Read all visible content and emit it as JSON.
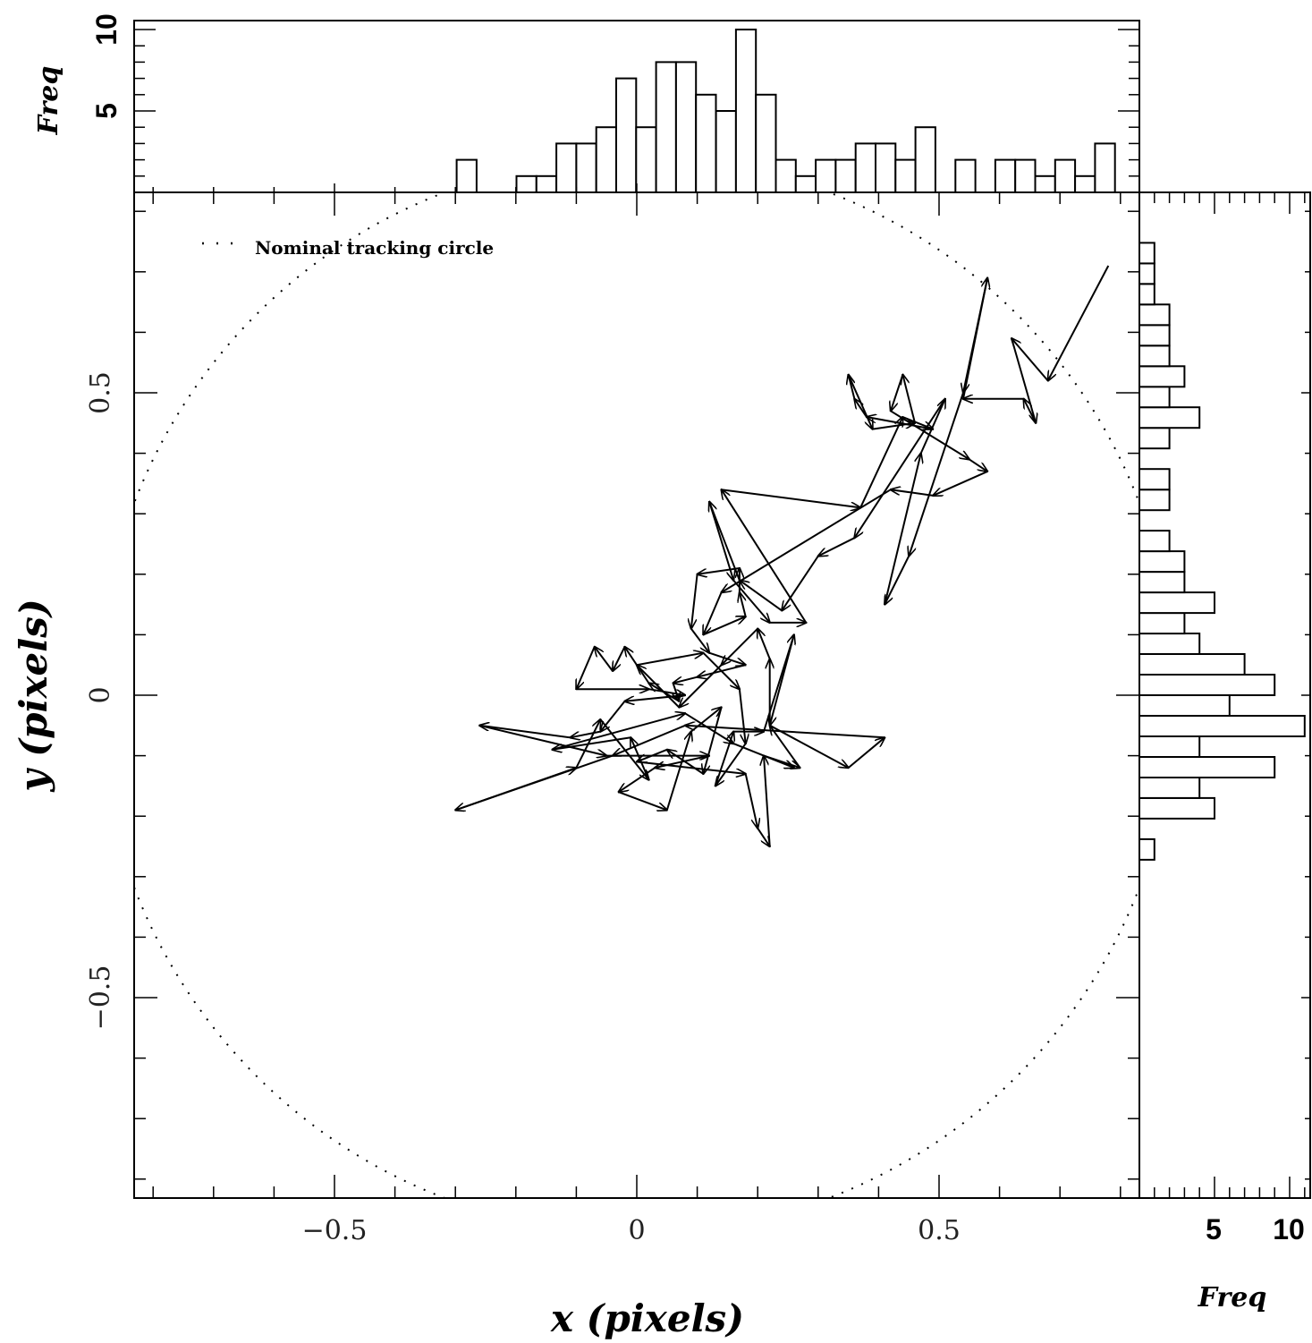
{
  "chart_data": {
    "type": "scatter",
    "title": "",
    "xlabel": "x (pixels)",
    "ylabel": "y (pixels)",
    "xlim": [
      -0.83,
      0.83
    ],
    "ylim": [
      -0.83,
      0.83
    ],
    "x_ticks": [
      -0.5,
      0,
      0.5
    ],
    "y_ticks": [
      -0.5,
      0,
      0.5
    ],
    "x_tick_labels": [
      "−0.5",
      "0",
      "0.5"
    ],
    "y_tick_labels": [
      "−0.5",
      "0",
      "0.5"
    ],
    "legend": {
      "entries": [
        "Nominal tracking circle"
      ],
      "placement": "top-left",
      "style": "dotted"
    },
    "tracking_circle": {
      "center": [
        0,
        0
      ],
      "radius": 0.89
    },
    "track": {
      "style": "arrows",
      "points": [
        [
          0.78,
          0.71
        ],
        [
          0.68,
          0.52
        ],
        [
          0.62,
          0.59
        ],
        [
          0.66,
          0.45
        ],
        [
          0.64,
          0.49
        ],
        [
          0.54,
          0.49
        ],
        [
          0.58,
          0.69
        ],
        [
          0.54,
          0.5
        ],
        [
          0.45,
          0.23
        ],
        [
          0.41,
          0.15
        ],
        [
          0.47,
          0.4
        ],
        [
          0.51,
          0.49
        ],
        [
          0.36,
          0.26
        ],
        [
          0.3,
          0.23
        ],
        [
          0.24,
          0.14
        ],
        [
          0.17,
          0.19
        ],
        [
          0.12,
          0.32
        ],
        [
          0.16,
          0.19
        ],
        [
          0.22,
          0.12
        ],
        [
          0.28,
          0.12
        ],
        [
          0.14,
          0.34
        ],
        [
          0.37,
          0.31
        ],
        [
          0.44,
          0.46
        ],
        [
          0.49,
          0.44
        ],
        [
          0.38,
          0.46
        ],
        [
          0.36,
          0.49
        ],
        [
          0.35,
          0.53
        ],
        [
          0.39,
          0.44
        ],
        [
          0.46,
          0.45
        ],
        [
          0.44,
          0.53
        ],
        [
          0.42,
          0.47
        ],
        [
          0.55,
          0.39
        ],
        [
          0.58,
          0.37
        ],
        [
          0.49,
          0.33
        ],
        [
          0.42,
          0.34
        ],
        [
          0.14,
          0.17
        ],
        [
          0.11,
          0.1
        ],
        [
          0.18,
          0.13
        ],
        [
          0.17,
          0.17
        ],
        [
          0.17,
          0.21
        ],
        [
          0.1,
          0.2
        ],
        [
          0.09,
          0.11
        ],
        [
          0.12,
          0.07
        ],
        [
          0.18,
          0.05
        ],
        [
          0.1,
          0.03
        ],
        [
          0.06,
          0.02
        ],
        [
          0.07,
          -0.01
        ],
        [
          0.02,
          0.02
        ],
        [
          -0.02,
          0.08
        ],
        [
          -0.04,
          0.04
        ],
        [
          -0.07,
          0.08
        ],
        [
          -0.1,
          0.01
        ],
        [
          0.02,
          0.01
        ],
        [
          0.08,
          0.0
        ],
        [
          -0.02,
          -0.01
        ],
        [
          -0.06,
          -0.06
        ],
        [
          -0.11,
          -0.07
        ],
        [
          -0.26,
          -0.05
        ],
        [
          -0.05,
          -0.1
        ],
        [
          0.12,
          -0.1
        ],
        [
          0.03,
          -0.12
        ],
        [
          -0.03,
          -0.16
        ],
        [
          0.05,
          -0.19
        ],
        [
          0.09,
          -0.06
        ],
        [
          0.14,
          -0.02
        ],
        [
          0.11,
          -0.13
        ],
        [
          0.05,
          -0.09
        ],
        [
          0.0,
          -0.11
        ],
        [
          0.18,
          -0.13
        ],
        [
          0.2,
          -0.22
        ],
        [
          0.22,
          -0.25
        ],
        [
          0.21,
          -0.1
        ],
        [
          0.27,
          -0.12
        ],
        [
          0.22,
          -0.05
        ],
        [
          0.22,
          0.06
        ],
        [
          0.2,
          0.11
        ],
        [
          0.14,
          0.05
        ],
        [
          0.07,
          -0.02
        ],
        [
          0.0,
          0.05
        ],
        [
          0.11,
          0.07
        ],
        [
          0.17,
          0.01
        ],
        [
          0.18,
          -0.08
        ],
        [
          0.13,
          -0.15
        ],
        [
          0.16,
          -0.06
        ],
        [
          0.21,
          -0.06
        ],
        [
          0.26,
          0.1
        ],
        [
          0.22,
          -0.05
        ],
        [
          0.35,
          -0.12
        ],
        [
          0.41,
          -0.07
        ],
        [
          0.08,
          -0.05
        ],
        [
          -0.04,
          -0.1
        ],
        [
          -0.3,
          -0.19
        ],
        [
          -0.1,
          -0.12
        ],
        [
          -0.06,
          -0.04
        ],
        [
          0.02,
          -0.14
        ],
        [
          -0.01,
          -0.07
        ],
        [
          -0.14,
          -0.09
        ],
        [
          0.08,
          -0.03
        ],
        [
          0.16,
          -0.08
        ],
        [
          0.26,
          -0.12
        ]
      ]
    },
    "top_histogram": {
      "ylabel": "Freq",
      "y_ticks": [
        5,
        10
      ],
      "y_tick_labels": [
        "5",
        "10"
      ],
      "bin_width": 0.033,
      "bins": [
        {
          "x0": -0.298,
          "count": 2
        },
        {
          "x0": -0.199,
          "count": 1
        },
        {
          "x0": -0.166,
          "count": 1
        },
        {
          "x0": -0.133,
          "count": 3
        },
        {
          "x0": -0.1,
          "count": 3
        },
        {
          "x0": -0.067,
          "count": 4
        },
        {
          "x0": -0.034,
          "count": 7
        },
        {
          "x0": -0.001,
          "count": 4
        },
        {
          "x0": 0.032,
          "count": 8
        },
        {
          "x0": 0.065,
          "count": 8
        },
        {
          "x0": 0.098,
          "count": 6
        },
        {
          "x0": 0.131,
          "count": 5
        },
        {
          "x0": 0.164,
          "count": 10
        },
        {
          "x0": 0.197,
          "count": 6
        },
        {
          "x0": 0.23,
          "count": 2
        },
        {
          "x0": 0.263,
          "count": 1
        },
        {
          "x0": 0.296,
          "count": 2
        },
        {
          "x0": 0.329,
          "count": 2
        },
        {
          "x0": 0.362,
          "count": 3
        },
        {
          "x0": 0.395,
          "count": 3
        },
        {
          "x0": 0.428,
          "count": 2
        },
        {
          "x0": 0.461,
          "count": 4
        },
        {
          "x0": 0.494,
          "count": 0
        },
        {
          "x0": 0.527,
          "count": 2
        },
        {
          "x0": 0.56,
          "count": 0
        },
        {
          "x0": 0.593,
          "count": 2
        },
        {
          "x0": 0.626,
          "count": 2
        },
        {
          "x0": 0.659,
          "count": 1
        },
        {
          "x0": 0.692,
          "count": 2
        },
        {
          "x0": 0.725,
          "count": 1
        },
        {
          "x0": 0.758,
          "count": 3
        }
      ]
    },
    "right_histogram": {
      "xlabel": "Freq",
      "x_ticks": [
        5,
        10
      ],
      "x_tick_labels": [
        "5",
        "10"
      ],
      "bin_width": 0.034,
      "bins": [
        {
          "y0": -0.272,
          "count": 1
        },
        {
          "y0": -0.204,
          "count": 5
        },
        {
          "y0": -0.17,
          "count": 4
        },
        {
          "y0": -0.136,
          "count": 9
        },
        {
          "y0": -0.102,
          "count": 4
        },
        {
          "y0": -0.068,
          "count": 11
        },
        {
          "y0": -0.034,
          "count": 6
        },
        {
          "y0": 0.0,
          "count": 9
        },
        {
          "y0": 0.034,
          "count": 7
        },
        {
          "y0": 0.068,
          "count": 4
        },
        {
          "y0": 0.102,
          "count": 3
        },
        {
          "y0": 0.136,
          "count": 5
        },
        {
          "y0": 0.17,
          "count": 3
        },
        {
          "y0": 0.204,
          "count": 3
        },
        {
          "y0": 0.238,
          "count": 2
        },
        {
          "y0": 0.306,
          "count": 2
        },
        {
          "y0": 0.34,
          "count": 2
        },
        {
          "y0": 0.408,
          "count": 2
        },
        {
          "y0": 0.442,
          "count": 4
        },
        {
          "y0": 0.476,
          "count": 2
        },
        {
          "y0": 0.51,
          "count": 3
        },
        {
          "y0": 0.544,
          "count": 2
        },
        {
          "y0": 0.578,
          "count": 2
        },
        {
          "y0": 0.612,
          "count": 2
        },
        {
          "y0": 0.646,
          "count": 1
        },
        {
          "y0": 0.68,
          "count": 1
        },
        {
          "y0": 0.714,
          "count": 1
        }
      ]
    }
  }
}
